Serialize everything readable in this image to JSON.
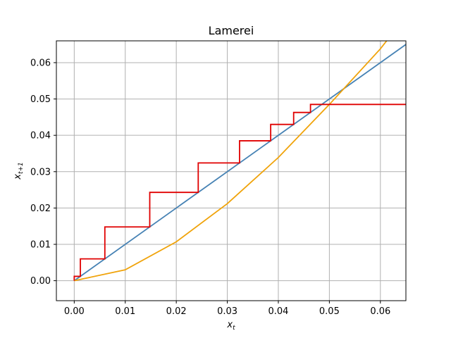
{
  "chart_data": {
    "type": "line",
    "title": "Lamerei",
    "xlabel": {
      "base": "x",
      "sub": "t"
    },
    "ylabel": {
      "base": "x",
      "sub": "t+1"
    },
    "xlim": [
      -0.0035,
      0.065
    ],
    "ylim": [
      -0.0055,
      0.066
    ],
    "xticks": [
      0.0,
      0.01,
      0.02,
      0.03,
      0.04,
      0.05,
      0.06
    ],
    "xtick_labels": [
      "0.00",
      "0.01",
      "0.02",
      "0.03",
      "0.04",
      "0.05",
      "0.06"
    ],
    "yticks": [
      0.0,
      0.01,
      0.02,
      0.03,
      0.04,
      0.05,
      0.06
    ],
    "ytick_labels": [
      "0.00",
      "0.01",
      "0.02",
      "0.03",
      "0.04",
      "0.05",
      "0.06"
    ],
    "grid": true,
    "series": [
      {
        "color": "#4682b4",
        "x": [
          0.0,
          0.065
        ],
        "y": [
          0.0,
          0.065
        ]
      },
      {
        "color": "#f0a30a",
        "x": [
          0.0,
          0.01,
          0.02,
          0.03,
          0.04,
          0.05,
          0.06,
          0.0615
        ],
        "y": [
          0.0,
          0.003,
          0.0107,
          0.0212,
          0.0339,
          0.0485,
          0.0638,
          0.0665
        ]
      },
      {
        "color": "#e00000",
        "x": [
          0.0,
          0.0,
          0.0012,
          0.0012,
          0.006,
          0.006,
          0.0148,
          0.0148,
          0.0243,
          0.0243,
          0.0324,
          0.0324,
          0.0385,
          0.0385,
          0.043,
          0.043,
          0.0463,
          0.0463,
          0.0485,
          0.0485,
          0.065
        ],
        "y": [
          0.0,
          0.0012,
          0.0012,
          0.006,
          0.006,
          0.0148,
          0.0148,
          0.0243,
          0.0243,
          0.0324,
          0.0324,
          0.0385,
          0.0385,
          0.043,
          0.043,
          0.0463,
          0.0463,
          0.0485,
          0.0485,
          0.0485,
          0.0485
        ]
      }
    ]
  }
}
